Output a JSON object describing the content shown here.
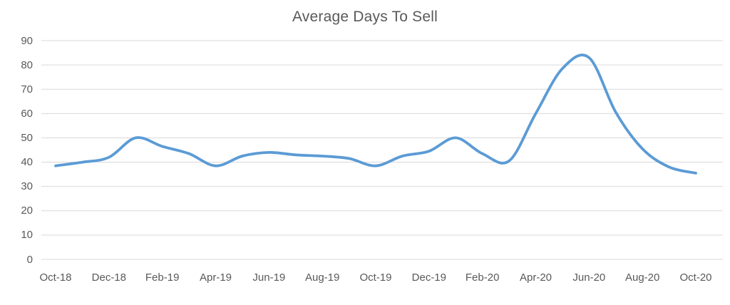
{
  "chart_data": {
    "type": "line",
    "title": "Average Days To Sell",
    "categories": [
      "Oct-18",
      "Nov-18",
      "Dec-18",
      "Jan-19",
      "Feb-19",
      "Mar-19",
      "Apr-19",
      "May-19",
      "Jun-19",
      "Jul-19",
      "Aug-19",
      "Sep-19",
      "Oct-19",
      "Nov-19",
      "Dec-19",
      "Jan-20",
      "Feb-20",
      "Mar-20",
      "Apr-20",
      "May-20",
      "Jun-20",
      "Jul-20",
      "Aug-20",
      "Sep-20",
      "Oct-20"
    ],
    "values": [
      38.5,
      40,
      42,
      50,
      46.5,
      43.5,
      38.5,
      42.5,
      44,
      43,
      42.5,
      41.5,
      38.5,
      42.5,
      44.5,
      50,
      43.5,
      40.5,
      60,
      78.5,
      83,
      60.5,
      45.5,
      38,
      35.5
    ],
    "x_tick_labels": [
      "Oct-18",
      "Dec-18",
      "Feb-19",
      "Apr-19",
      "Jun-19",
      "Aug-19",
      "Oct-19",
      "Dec-19",
      "Feb-20",
      "Apr-20",
      "Jun-20",
      "Aug-20",
      "Oct-20"
    ],
    "y_ticks": [
      0,
      10,
      20,
      30,
      40,
      50,
      60,
      70,
      80,
      90
    ],
    "ylim": [
      0,
      90
    ],
    "grid": true,
    "legend_position": "none",
    "line_color": "#5B9BD5",
    "grid_color": "#D9D9D9",
    "text_color": "#595959",
    "background_color": "#FFFFFF"
  }
}
